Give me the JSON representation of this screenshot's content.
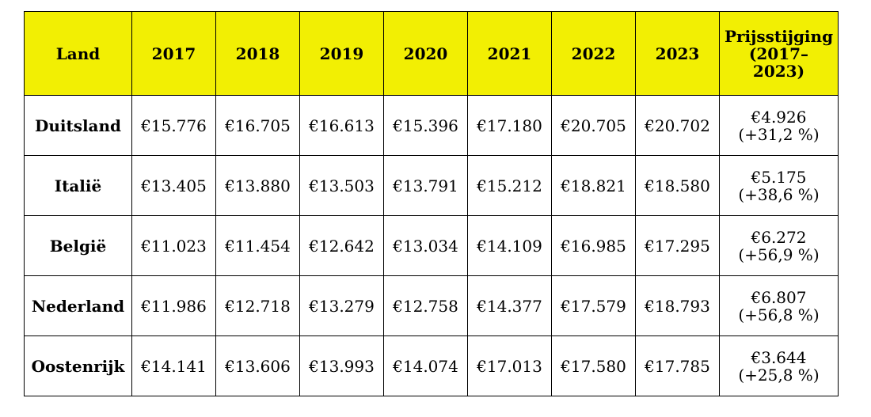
{
  "table": {
    "columns": [
      {
        "label": "Land"
      },
      {
        "label": "2017"
      },
      {
        "label": "2018"
      },
      {
        "label": "2019"
      },
      {
        "label": "2020"
      },
      {
        "label": "2021"
      },
      {
        "label": "2022"
      },
      {
        "label": "2023"
      },
      {
        "label_lines": [
          "Prijsstijging",
          "(2017–",
          "2023)"
        ]
      }
    ],
    "rows": [
      {
        "country": "Duitsland",
        "values": [
          "€15.776",
          "€16.705",
          "€16.613",
          "€15.396",
          "€17.180",
          "€20.705",
          "€20.702"
        ],
        "increase": "€4.926",
        "increase_pct": "(+31,2 %)"
      },
      {
        "country": "Italië",
        "values": [
          "€13.405",
          "€13.880",
          "€13.503",
          "€13.791",
          "€15.212",
          "€18.821",
          "€18.580"
        ],
        "increase": "€5.175",
        "increase_pct": "(+38,6 %)"
      },
      {
        "country": "België",
        "values": [
          "€11.023",
          "€11.454",
          "€12.642",
          "€13.034",
          "€14.109",
          "€16.985",
          "€17.295"
        ],
        "increase": "€6.272",
        "increase_pct": "(+56,9 %)"
      },
      {
        "country": "Nederland",
        "values": [
          "€11.986",
          "€12.718",
          "€13.279",
          "€12.758",
          "€14.377",
          "€17.579",
          "€18.793"
        ],
        "increase": "€6.807",
        "increase_pct": "(+56,8 %)"
      },
      {
        "country": "Oostenrijk",
        "values": [
          "€14.141",
          "€13.606",
          "€13.993",
          "€14.074",
          "€17.013",
          "€17.580",
          "€17.785"
        ],
        "increase": "€3.644",
        "increase_pct": "(+25,8 %)"
      }
    ]
  },
  "colors": {
    "header_background": "#f2ef03",
    "border": "#000000",
    "text": "#000000"
  }
}
